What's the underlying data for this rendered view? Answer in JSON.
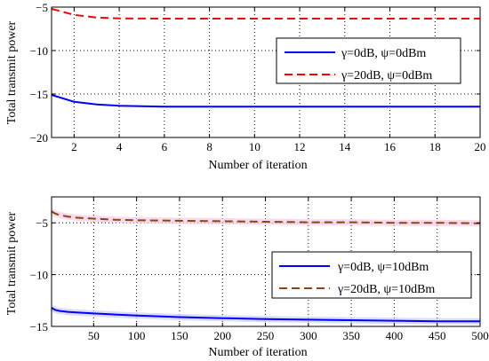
{
  "chart_data": [
    {
      "type": "line",
      "xlabel": "Number of iteration",
      "ylabel": "Total transmit power",
      "xlim": [
        1,
        20
      ],
      "ylim": [
        -20,
        -5
      ],
      "xticks": [
        2,
        4,
        6,
        8,
        10,
        12,
        14,
        16,
        18,
        20
      ],
      "yticks": [
        -20,
        -15,
        -10,
        -5
      ],
      "grid": true,
      "legend_position": "top-right",
      "series": [
        {
          "name": "γ=0dB, ψ=0dBm",
          "color": "#0000ff",
          "style": "solid",
          "x": [
            1,
            2,
            3,
            4,
            5,
            6,
            7,
            8,
            10,
            12,
            14,
            16,
            18,
            20
          ],
          "y": [
            -15.1,
            -15.9,
            -16.2,
            -16.35,
            -16.4,
            -16.45,
            -16.45,
            -16.45,
            -16.45,
            -16.45,
            -16.45,
            -16.45,
            -16.45,
            -16.45
          ]
        },
        {
          "name": "γ=20dB, ψ=0dBm",
          "color": "#ff0000",
          "style": "dashed",
          "x": [
            1,
            2,
            3,
            4,
            5,
            6,
            8,
            10,
            12,
            14,
            16,
            18,
            20
          ],
          "y": [
            -5.2,
            -5.9,
            -6.2,
            -6.3,
            -6.32,
            -6.33,
            -6.33,
            -6.33,
            -6.33,
            -6.33,
            -6.33,
            -6.33,
            -6.33
          ]
        }
      ]
    },
    {
      "type": "line",
      "xlabel": "Number of iteration",
      "ylabel": "Total transmit power",
      "xlim": [
        1,
        500
      ],
      "ylim": [
        -15,
        -2.5
      ],
      "xticks": [
        50,
        100,
        150,
        200,
        250,
        300,
        350,
        400,
        450,
        500
      ],
      "yticks": [
        -15,
        -10,
        -5
      ],
      "grid": true,
      "legend_position": "lower-right",
      "series": [
        {
          "name": "γ=0dB, ψ=10dBm",
          "color": "#0000ff",
          "style": "solid",
          "x": [
            1,
            5,
            10,
            20,
            30,
            50,
            75,
            100,
            150,
            200,
            250,
            300,
            350,
            400,
            450,
            500
          ],
          "y": [
            -13.2,
            -13.4,
            -13.5,
            -13.6,
            -13.65,
            -13.75,
            -13.85,
            -13.95,
            -14.1,
            -14.2,
            -14.3,
            -14.35,
            -14.4,
            -14.45,
            -14.5,
            -14.5
          ],
          "band_color": "#ccccff"
        },
        {
          "name": "γ=20dB, ψ=10dBm",
          "color": "#8b4513",
          "style": "dashed",
          "x": [
            1,
            5,
            10,
            20,
            30,
            50,
            75,
            100,
            150,
            200,
            250,
            300,
            350,
            400,
            450,
            500
          ],
          "y": [
            -3.9,
            -4.1,
            -4.25,
            -4.4,
            -4.5,
            -4.6,
            -4.7,
            -4.75,
            -4.8,
            -4.85,
            -4.9,
            -4.95,
            -4.95,
            -5.0,
            -5.0,
            -5.05
          ],
          "band_color": "#f4cce6"
        }
      ]
    }
  ]
}
